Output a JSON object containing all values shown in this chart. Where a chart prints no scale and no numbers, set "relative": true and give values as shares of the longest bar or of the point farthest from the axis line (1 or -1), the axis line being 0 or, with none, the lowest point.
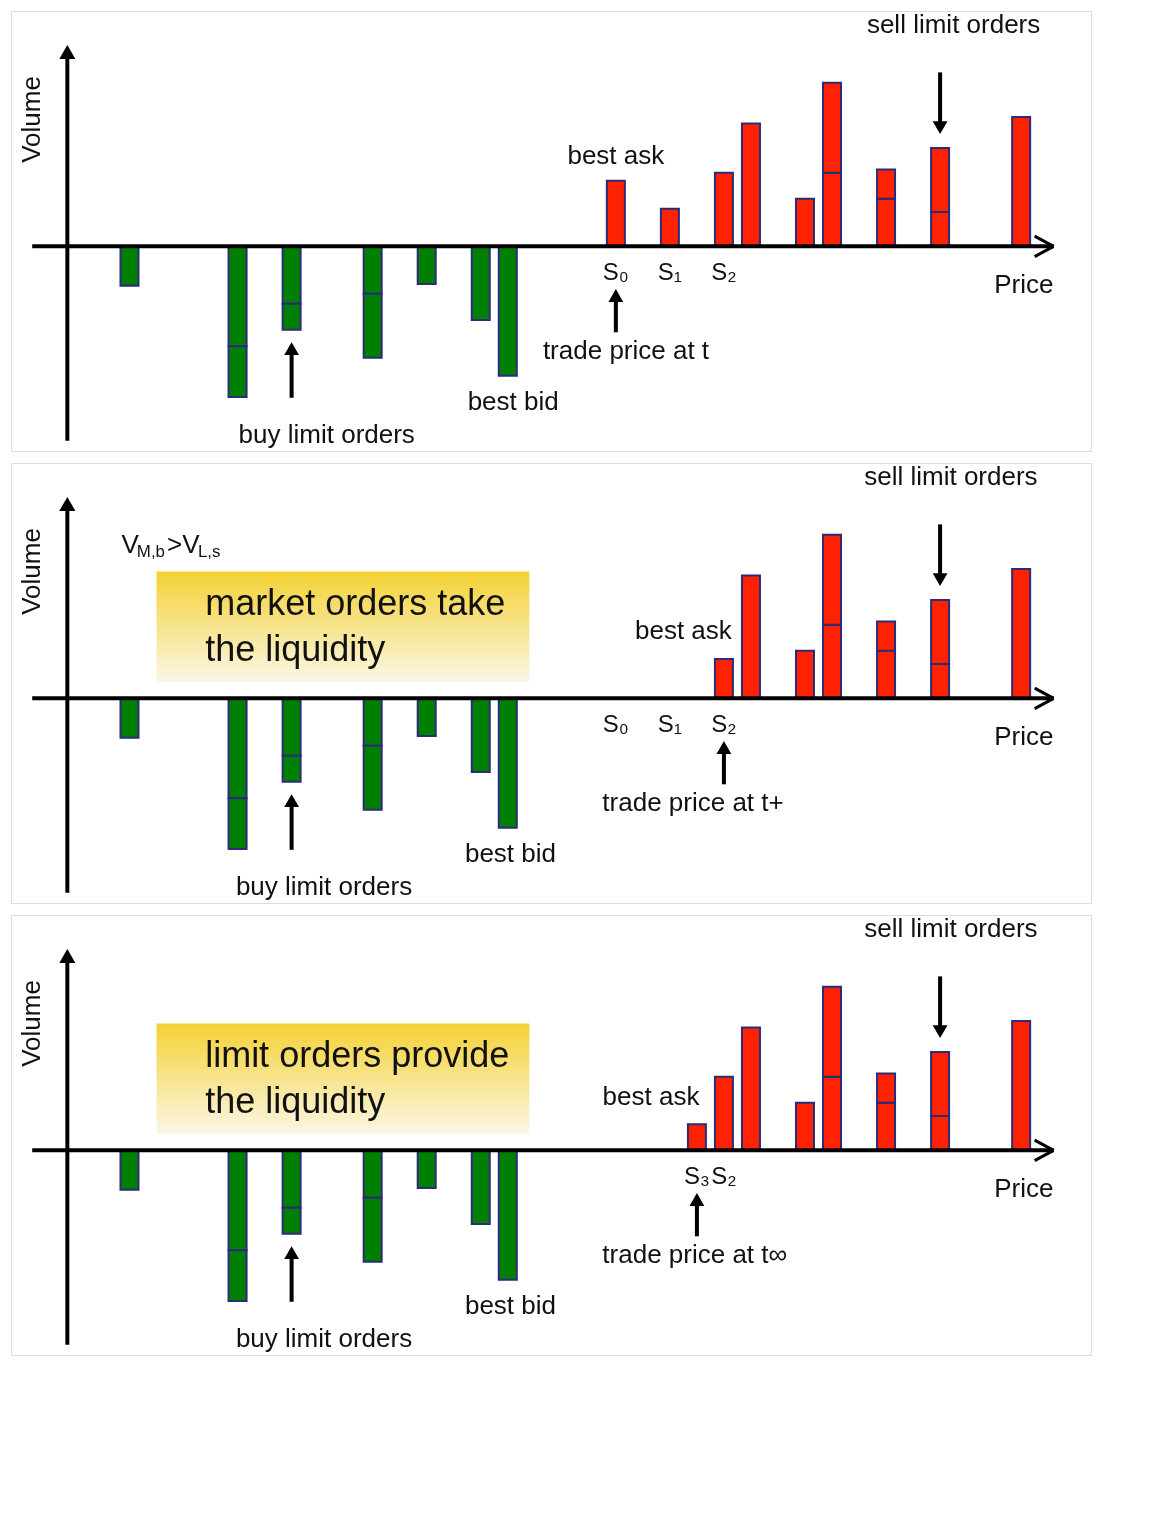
{
  "chart_data": [
    {
      "type": "bar",
      "relative": true,
      "stacked": true,
      "xlabel": "Price",
      "ylabel": "Volume",
      "categories": [
        null,
        null,
        null,
        null,
        null,
        null,
        null,
        null,
        null,
        null,
        null,
        null,
        null,
        null,
        null,
        null,
        null,
        null,
        "S₀",
        null,
        "S₁",
        null,
        "S₂",
        null,
        null,
        null,
        null,
        null,
        null,
        null,
        null,
        null,
        null,
        null
      ],
      "series": [
        {
          "color": "#008000",
          "values": [
            -0.24,
            null,
            null,
            null,
            -0.61,
            null,
            -0.35,
            null,
            null,
            -0.29,
            null,
            -0.23,
            null,
            -0.45,
            -0.79,
            null,
            null,
            null,
            null,
            null,
            null,
            null,
            null,
            null,
            null,
            null,
            null,
            null,
            null,
            null,
            null,
            null,
            null,
            null
          ]
        },
        {
          "color": "#008000",
          "values": [
            null,
            null,
            null,
            null,
            -0.31,
            null,
            -0.16,
            null,
            null,
            -0.39,
            null,
            null,
            null,
            null,
            null,
            null,
            null,
            null,
            null,
            null,
            null,
            null,
            null,
            null,
            null,
            null,
            null,
            null,
            null,
            null,
            null,
            null,
            null,
            null
          ]
        },
        {
          "color": "#ff2200",
          "values": [
            null,
            null,
            null,
            null,
            null,
            null,
            null,
            null,
            null,
            null,
            null,
            null,
            null,
            null,
            null,
            null,
            null,
            null,
            0.4,
            null,
            0.23,
            null,
            0.45,
            0.75,
            null,
            0.29,
            0.45,
            null,
            0.29,
            null,
            0.21,
            null,
            null,
            0.79
          ]
        },
        {
          "color": "#ff2200",
          "values": [
            null,
            null,
            null,
            null,
            null,
            null,
            null,
            null,
            null,
            null,
            null,
            null,
            null,
            null,
            null,
            null,
            null,
            null,
            null,
            null,
            null,
            null,
            null,
            null,
            null,
            null,
            0.55,
            null,
            0.18,
            null,
            0.39,
            null,
            null,
            null
          ]
        }
      ],
      "annotations": [
        "best ask",
        "trade price at t",
        "best bid",
        "buy limit orders",
        "sell limit orders"
      ]
    },
    {
      "type": "bar",
      "relative": true,
      "stacked": true,
      "xlabel": "Price",
      "ylabel": "Volume",
      "categories": [
        null,
        null,
        null,
        null,
        null,
        null,
        null,
        null,
        null,
        null,
        null,
        null,
        null,
        null,
        null,
        null,
        null,
        null,
        "S₀",
        null,
        "S₁",
        null,
        "S₂",
        null,
        null,
        null,
        null,
        null,
        null,
        null,
        null,
        null,
        null,
        null
      ],
      "series": [
        {
          "color": "#008000",
          "values": [
            -0.24,
            null,
            null,
            null,
            -0.61,
            null,
            -0.35,
            null,
            null,
            -0.29,
            null,
            -0.23,
            null,
            -0.45,
            -0.79,
            null,
            null,
            null,
            null,
            null,
            null,
            null,
            null,
            null,
            null,
            null,
            null,
            null,
            null,
            null,
            null,
            null,
            null,
            null
          ]
        },
        {
          "color": "#008000",
          "values": [
            null,
            null,
            null,
            null,
            -0.31,
            null,
            -0.16,
            null,
            null,
            -0.39,
            null,
            null,
            null,
            null,
            null,
            null,
            null,
            null,
            null,
            null,
            null,
            null,
            null,
            null,
            null,
            null,
            null,
            null,
            null,
            null,
            null,
            null,
            null,
            null
          ]
        },
        {
          "color": "#ff2200",
          "values": [
            null,
            null,
            null,
            null,
            null,
            null,
            null,
            null,
            null,
            null,
            null,
            null,
            null,
            null,
            null,
            null,
            null,
            null,
            null,
            null,
            null,
            null,
            0.24,
            0.75,
            null,
            0.29,
            0.45,
            null,
            0.29,
            null,
            0.21,
            null,
            null,
            0.79
          ]
        },
        {
          "color": "#ff2200",
          "values": [
            null,
            null,
            null,
            null,
            null,
            null,
            null,
            null,
            null,
            null,
            null,
            null,
            null,
            null,
            null,
            null,
            null,
            null,
            null,
            null,
            null,
            null,
            null,
            null,
            null,
            null,
            0.55,
            null,
            0.18,
            null,
            0.39,
            null,
            null,
            null
          ]
        }
      ],
      "annotations": [
        "V$_{M,b}$>V$_{L,s}$",
        "market orders take the liquidity",
        "best ask",
        "trade price at t+",
        "best bid",
        "buy limit orders",
        "sell limit orders"
      ]
    },
    {
      "type": "bar",
      "relative": true,
      "stacked": true,
      "xlabel": "Price",
      "ylabel": "Volume",
      "categories": [
        null,
        null,
        null,
        null,
        null,
        null,
        null,
        null,
        null,
        null,
        null,
        null,
        null,
        null,
        null,
        null,
        null,
        null,
        null,
        null,
        null,
        "S₃",
        "S₂",
        null,
        null,
        null,
        null,
        null,
        null,
        null,
        null,
        null,
        null,
        null
      ],
      "series": [
        {
          "color": "#008000",
          "values": [
            -0.24,
            null,
            null,
            null,
            -0.61,
            null,
            -0.35,
            null,
            null,
            -0.29,
            null,
            -0.23,
            null,
            -0.45,
            -0.79,
            null,
            null,
            null,
            null,
            null,
            null,
            null,
            null,
            null,
            null,
            null,
            null,
            null,
            null,
            null,
            null,
            null,
            null,
            null
          ]
        },
        {
          "color": "#008000",
          "values": [
            null,
            null,
            null,
            null,
            -0.31,
            null,
            -0.16,
            null,
            null,
            -0.39,
            null,
            null,
            null,
            null,
            null,
            null,
            null,
            null,
            null,
            null,
            null,
            null,
            null,
            null,
            null,
            null,
            null,
            null,
            null,
            null,
            null,
            null,
            null,
            null
          ]
        },
        {
          "color": "#ff2200",
          "values": [
            null,
            null,
            null,
            null,
            null,
            null,
            null,
            null,
            null,
            null,
            null,
            null,
            null,
            null,
            null,
            null,
            null,
            null,
            null,
            null,
            null,
            0.16,
            0.45,
            0.75,
            null,
            0.29,
            0.45,
            null,
            0.29,
            null,
            0.21,
            null,
            null,
            0.79
          ]
        },
        {
          "color": "#ff2200",
          "values": [
            null,
            null,
            null,
            null,
            null,
            null,
            null,
            null,
            null,
            null,
            null,
            null,
            null,
            null,
            null,
            null,
            null,
            null,
            null,
            null,
            null,
            null,
            null,
            null,
            null,
            null,
            0.55,
            null,
            0.18,
            null,
            0.39,
            null,
            null,
            null
          ]
        }
      ],
      "annotations": [
        "limit orders provide the liquidity",
        "best ask",
        "trade price at t∞",
        "best bid",
        "buy limit orders",
        "sell limit orders"
      ]
    }
  ]
}
